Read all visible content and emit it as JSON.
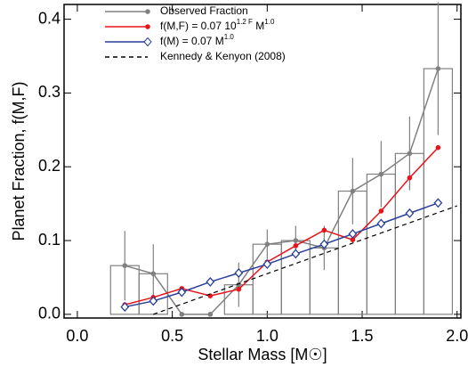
{
  "chart_data": {
    "type": "line",
    "xlabel": "Stellar Mass [M☉]",
    "ylabel": "Planet Fraction, f(M,F)",
    "xlim": [
      -0.07,
      2.02
    ],
    "ylim": [
      -0.005,
      0.42
    ],
    "xticks": [
      {
        "value": 0,
        "label": "0.0"
      },
      0.5,
      {
        "value": 1,
        "label": "1.0"
      },
      1.5,
      {
        "value": 2,
        "label": "2.0"
      }
    ],
    "yticks": [
      {
        "value": 0,
        "label": "0.0"
      },
      0.1,
      0.2,
      0.3,
      0.4
    ],
    "bins": [
      0.175,
      0.325,
      0.475,
      0.625,
      0.775,
      0.925,
      1.075,
      1.225,
      1.375,
      1.525,
      1.675,
      1.825,
      1.975
    ],
    "x": [
      0.25,
      0.4,
      0.55,
      0.7,
      0.85,
      1.0,
      1.15,
      1.3,
      1.45,
      1.6,
      1.75,
      1.9
    ],
    "series": [
      {
        "name": "Observed Fraction",
        "color": "#808080",
        "marker": "circle",
        "values": [
          0.066,
          0.055,
          0,
          0,
          0.04,
          0.095,
          0.1,
          0.09,
          0.167,
          0.19,
          0.218,
          0.333
        ],
        "errors": [
          0.047,
          0.04,
          null,
          null,
          0.03,
          0.02,
          0.02,
          0.03,
          0.045,
          0.045,
          0.05,
          0.09
        ]
      },
      {
        "name": [
          "f(M,F) = 0.07 10",
          "1.2 F",
          " M",
          "1.0"
        ],
        "color": "#e8141c",
        "marker": "circle",
        "values": [
          0.013,
          0.023,
          0.035,
          0.025,
          0.034,
          0.071,
          0.093,
          0.114,
          0.101,
          0.14,
          0.185,
          0.226
        ]
      },
      {
        "name": [
          "f(M) = 0.07 M",
          "1.0"
        ],
        "color": "#2a3f9a",
        "marker": "diamond",
        "values": [
          0.01,
          0.018,
          0.03,
          0.044,
          0.056,
          0.068,
          0.082,
          0.095,
          0.109,
          0.123,
          0.137,
          0.151
        ]
      },
      {
        "name": "Kennedy & Kenyon (2008)",
        "color": "#000000",
        "dash": true,
        "x": [
          0.4,
          2.0
        ],
        "values": [
          0.0,
          0.147
        ]
      }
    ]
  }
}
